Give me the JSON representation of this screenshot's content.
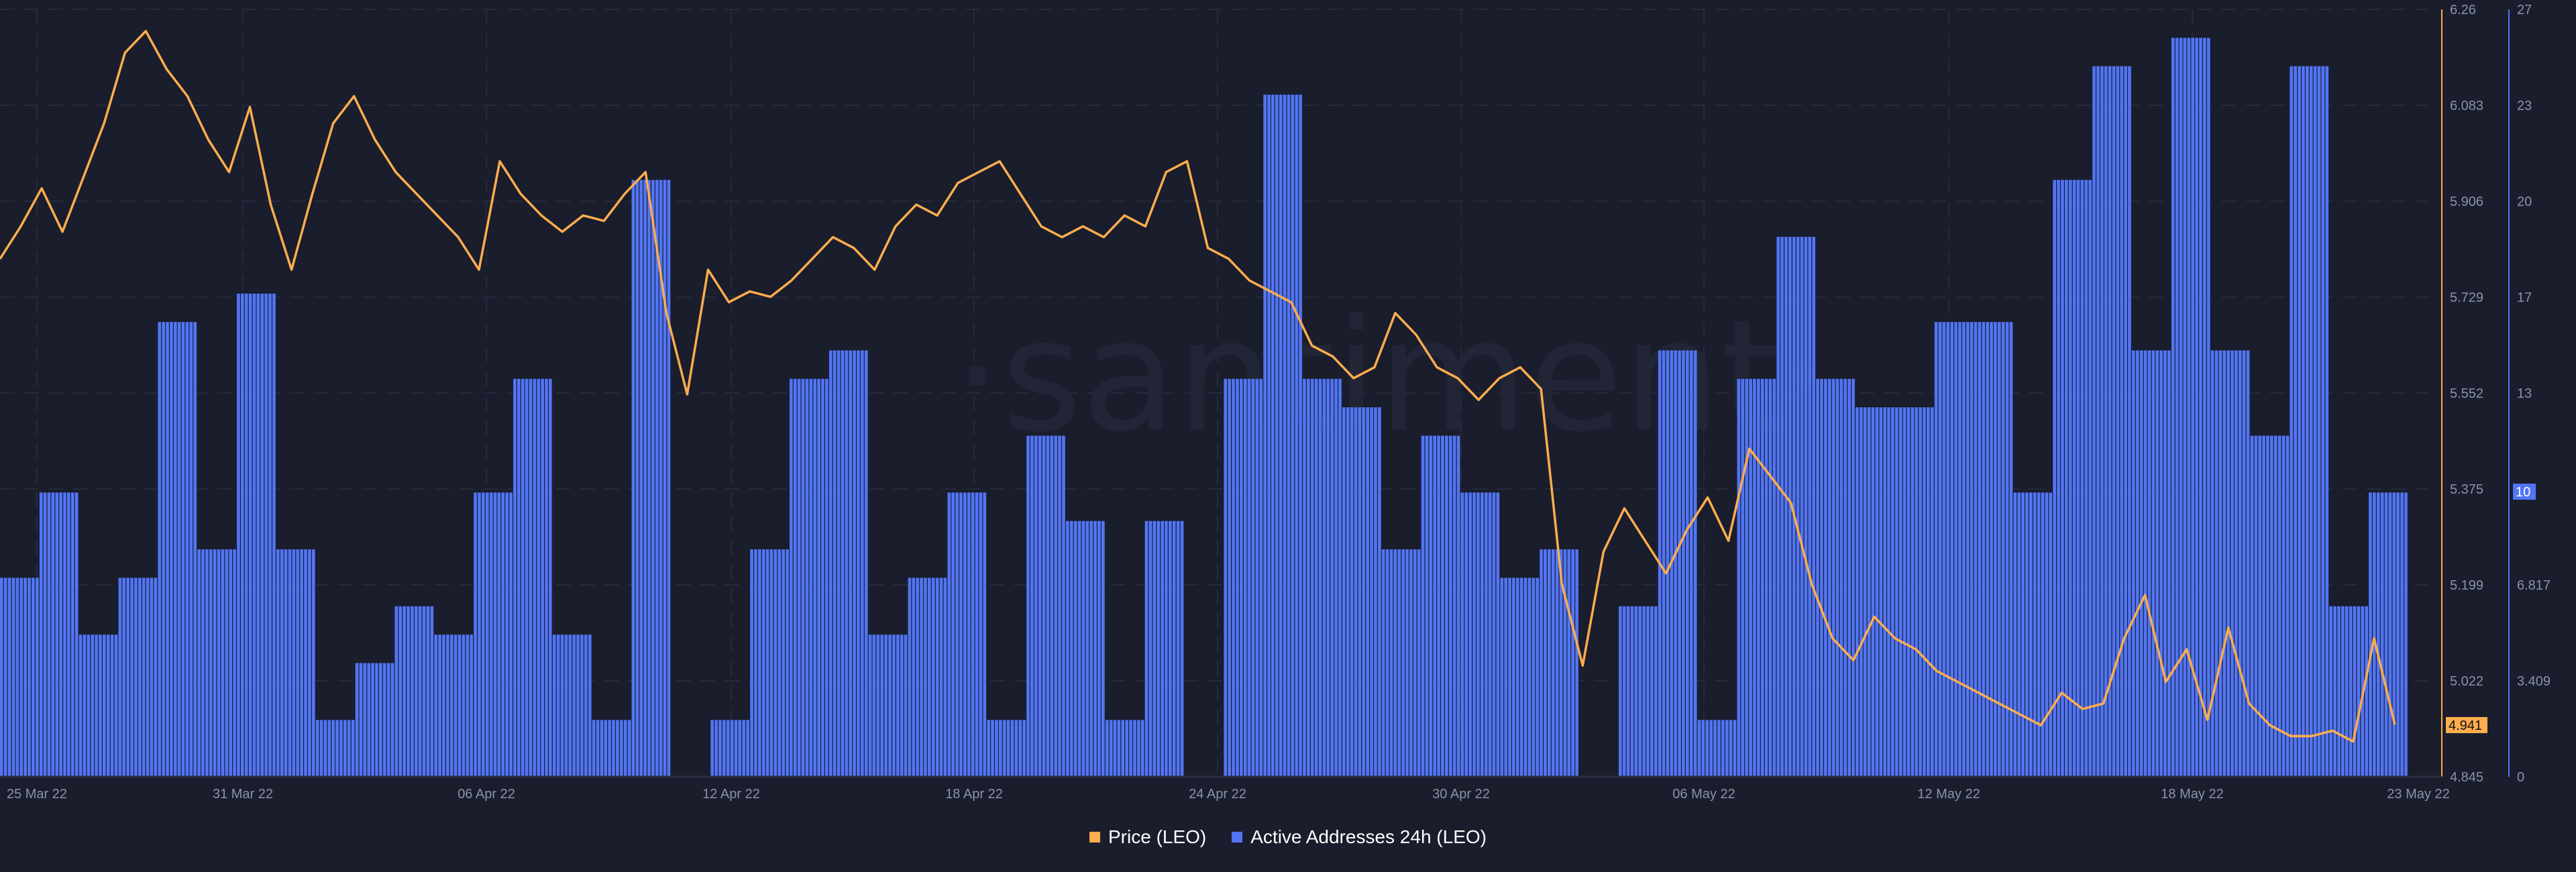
{
  "chart_data": {
    "type": "bar+line",
    "title": "",
    "watermark": "·santiment·",
    "x_axis": {
      "tick_labels": [
        "25 Mar 22",
        "31 Mar 22",
        "06 Apr 22",
        "12 Apr 22",
        "18 Apr 22",
        "24 Apr 22",
        "30 Apr 22",
        "06 May 22",
        "12 May 22",
        "18 May 22",
        "23 May 22"
      ]
    },
    "y_axis_left_price": {
      "label": "Price (LEO)",
      "ticks": [
        "6.26",
        "6.083",
        "5.906",
        "5.729",
        "5.552",
        "5.375",
        "5.199",
        "5.022",
        "4.845"
      ],
      "range": [
        4.845,
        6.26
      ],
      "current_value": "4.941"
    },
    "y_axis_right_addresses": {
      "label": "Active Addresses 24h (LEO)",
      "ticks": [
        "27",
        "23",
        "20",
        "17",
        "13",
        "10",
        "6.817",
        "3.409",
        "0"
      ],
      "range": [
        0,
        27
      ],
      "current_value": "10"
    },
    "series": [
      {
        "name": "Active Addresses 24h (LEO)",
        "type": "bar",
        "color": "#5275f5",
        "values": [
          7,
          10,
          5,
          7,
          16,
          8,
          17,
          8,
          2,
          4,
          6,
          5,
          10,
          14,
          5,
          2,
          21,
          0,
          2,
          8,
          14,
          15,
          5,
          7,
          10,
          2,
          12,
          9,
          2,
          9,
          0,
          14,
          24,
          14,
          13,
          8,
          12,
          10,
          7,
          8,
          0,
          6,
          15,
          2,
          14,
          19,
          14,
          13,
          13,
          16,
          16,
          10,
          21,
          25,
          15,
          26,
          15,
          12,
          25,
          6,
          10
        ]
      },
      {
        "name": "Price (LEO)",
        "type": "line",
        "color": "#ffad4d",
        "values": [
          5.8,
          5.86,
          5.93,
          5.85,
          5.95,
          6.05,
          6.18,
          6.22,
          6.15,
          6.1,
          6.02,
          5.96,
          6.08,
          5.9,
          5.78,
          5.92,
          6.05,
          6.1,
          6.02,
          5.96,
          5.92,
          5.88,
          5.84,
          5.78,
          5.98,
          5.92,
          5.88,
          5.85,
          5.88,
          5.87,
          5.92,
          5.96,
          5.7,
          5.55,
          5.78,
          5.72,
          5.74,
          5.73,
          5.76,
          5.8,
          5.84,
          5.82,
          5.78,
          5.86,
          5.9,
          5.88,
          5.94,
          5.96,
          5.98,
          5.92,
          5.86,
          5.84,
          5.86,
          5.84,
          5.88,
          5.86,
          5.96,
          5.98,
          5.82,
          5.8,
          5.76,
          5.74,
          5.72,
          5.64,
          5.62,
          5.58,
          5.6,
          5.7,
          5.66,
          5.6,
          5.58,
          5.54,
          5.58,
          5.6,
          5.56,
          5.2,
          5.05,
          5.26,
          5.34,
          5.28,
          5.22,
          5.3,
          5.36,
          5.28,
          5.45,
          5.4,
          5.35,
          5.2,
          5.1,
          5.06,
          5.14,
          5.1,
          5.08,
          5.04,
          5.02,
          5.0,
          4.98,
          4.96,
          4.94,
          5.0,
          4.97,
          4.98,
          5.1,
          5.18,
          5.02,
          5.08,
          4.95,
          5.12,
          4.98,
          4.94,
          4.92,
          4.92,
          4.93,
          4.91,
          5.1,
          4.941
        ]
      }
    ],
    "legend_position": "bottom-center",
    "grid": "dashed horizontal + vertical"
  },
  "legend": {
    "items": [
      {
        "label": "Price (LEO)",
        "color": "#ffad4d"
      },
      {
        "label": "Active Addresses 24h (LEO)",
        "color": "#5275f5"
      }
    ]
  }
}
